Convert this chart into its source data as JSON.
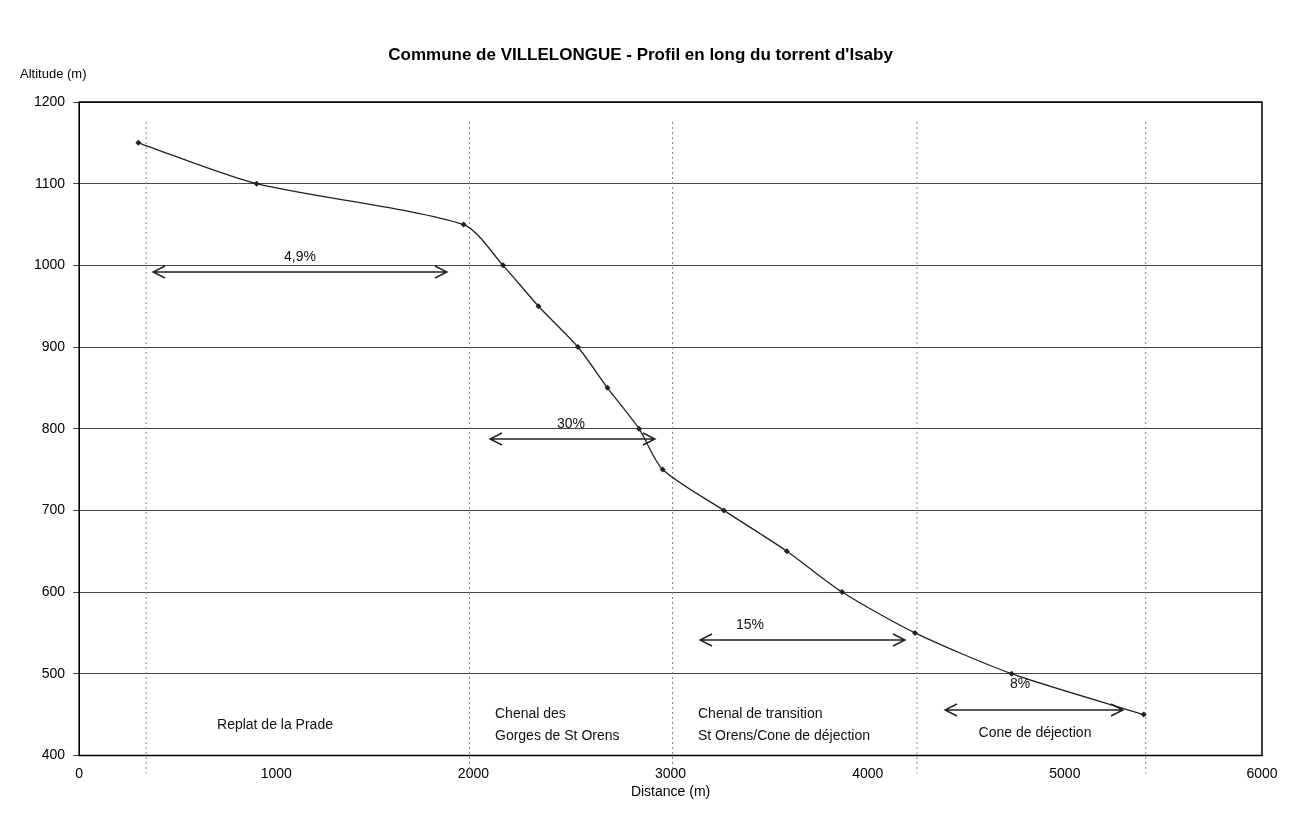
{
  "chart_data": {
    "type": "line",
    "title": "Commune de VILLELONGUE - Profil en long du torrent d'Isaby",
    "xlabel": "Distance (m)",
    "ylabel": "Altitude (m)",
    "x": [
      300,
      900,
      1950,
      2150,
      2330,
      2530,
      2680,
      2840,
      2960,
      3270,
      3590,
      3870,
      4240,
      4730,
      5400
    ],
    "series": [
      {
        "color": "#222222",
        "values": [
          1150,
          1100,
          1050,
          1000,
          950,
          900,
          850,
          800,
          750,
          700,
          650,
          600,
          550,
          500,
          450
        ]
      }
    ],
    "xlim": [
      0,
      6000
    ],
    "xticks": [
      0,
      1000,
      2000,
      3000,
      4000,
      5000,
      6000
    ],
    "ylim": [
      400,
      1200
    ],
    "yticks": [
      400,
      500,
      600,
      700,
      800,
      900,
      1000,
      1100,
      1200
    ],
    "grid": "y",
    "legend": false,
    "marker": "diamond",
    "line_style": "solid",
    "ref_lines": [
      {
        "axis": "x",
        "value": 340,
        "color": "#888888",
        "line_style": "dotted"
      },
      {
        "axis": "x",
        "value": 1980,
        "color": "#888888",
        "line_style": "dotted"
      },
      {
        "axis": "x",
        "value": 3010,
        "color": "#888888",
        "line_style": "dotted"
      },
      {
        "axis": "x",
        "value": 4250,
        "color": "#888888",
        "line_style": "dotted"
      },
      {
        "axis": "x",
        "value": 5410,
        "color": "#888888",
        "line_style": "dotted"
      }
    ],
    "annotations": [
      "4,9%",
      "30%",
      "15%",
      "8%",
      "Replat de la Prade",
      "Chenal des\nGorges de St Orens",
      "Chenal de transition\nSt Orens/Cone de déjection",
      "Cone de déjection"
    ]
  }
}
